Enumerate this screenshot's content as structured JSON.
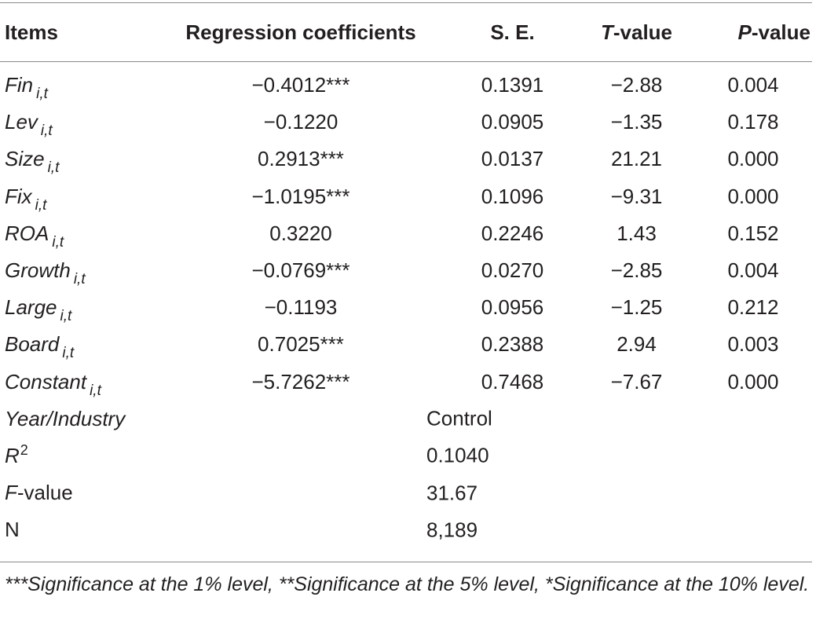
{
  "table": {
    "headers": {
      "items": "Items",
      "coef": "Regression coefficients",
      "se": "S. E.",
      "t_prefix": "T",
      "t_suffix": "-value",
      "p_prefix": "P",
      "p_suffix": "-value"
    },
    "rows": [
      {
        "name": "Fin",
        "sub": "i,t",
        "coef": "−0.4012***",
        "se": "0.1391",
        "t": "−2.88",
        "p": "0.004"
      },
      {
        "name": "Lev",
        "sub": "i,t",
        "coef": "−0.1220",
        "se": "0.0905",
        "t": "−1.35",
        "p": "0.178"
      },
      {
        "name": "Size",
        "sub": "i,t",
        "coef": "0.2913***",
        "se": "0.0137",
        "t": "21.21",
        "p": "0.000"
      },
      {
        "name": "Fix",
        "sub": "i,t",
        "coef": "−1.0195***",
        "se": "0.1096",
        "t": "−9.31",
        "p": "0.000"
      },
      {
        "name": "ROA",
        "sub": "i,t",
        "coef": "0.3220",
        "se": "0.2246",
        "t": "1.43",
        "p": "0.152"
      },
      {
        "name": "Growth",
        "sub": "i,t",
        "coef": "−0.0769***",
        "se": "0.0270",
        "t": "−2.85",
        "p": "0.004"
      },
      {
        "name": "Large",
        "sub": "i,t",
        "coef": "−0.1193",
        "se": "0.0956",
        "t": "−1.25",
        "p": "0.212"
      },
      {
        "name": "Board",
        "sub": "i,t",
        "coef": "0.7025***",
        "se": "0.2388",
        "t": "2.94",
        "p": "0.003"
      },
      {
        "name": "Constant",
        "sub": "i,t",
        "coef": "−5.7262***",
        "se": "0.7468",
        "t": "−7.67",
        "p": "0.000"
      }
    ],
    "summary": {
      "year_industry": {
        "label": "Year/Industry",
        "value": "Control"
      },
      "r2": {
        "label": "R",
        "sup": "2",
        "value": "0.1040"
      },
      "fvalue": {
        "label_prefix": "F",
        "label_suffix": "-value",
        "value": "31.67"
      },
      "n": {
        "label": "N",
        "value": "8,189"
      }
    }
  },
  "footnote": "***Significance at the 1% level, **Significance at the 5% level, *Significance at the 10% level."
}
